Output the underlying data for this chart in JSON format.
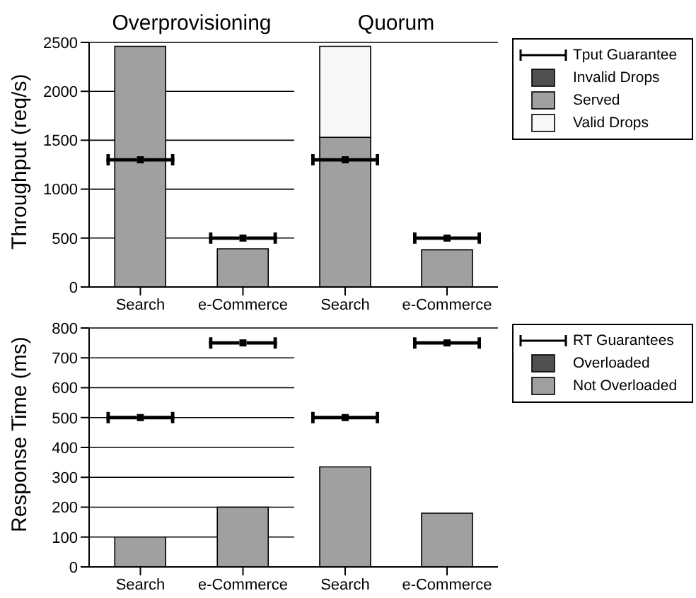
{
  "chart_data": [
    {
      "type": "bar",
      "title": "Overprovisioning",
      "ylabel": "Throughput (req/s)",
      "stacked": true,
      "categories": [
        "Search",
        "e-Commerce"
      ],
      "ylim": [
        0,
        2500
      ],
      "yticks": [
        0,
        500,
        1000,
        1500,
        2000,
        2500
      ],
      "grid": "y",
      "legend": false,
      "series": [
        {
          "color": "#a0a0a0",
          "values": [
            2460,
            390
          ]
        },
        {
          "type": "scatter",
          "color": "#000000",
          "values": [
            1300,
            500
          ]
        }
      ]
    },
    {
      "type": "bar",
      "title": "Quorum",
      "stacked": true,
      "categories": [
        "Search",
        "e-Commerce"
      ],
      "ylim": [
        0,
        2500
      ],
      "yticks": [
        0,
        500,
        1000,
        1500,
        2000,
        2500
      ],
      "grid": "y",
      "tick_labels": "x",
      "legend": "right",
      "series": [
        {
          "name": "Tput Guarantee",
          "type": "scatter",
          "color": "#000000",
          "values": [
            1300,
            500
          ]
        },
        {
          "name": "Invalid Drops",
          "color": "#505050",
          "values": [
            0,
            0
          ]
        },
        {
          "name": "Served",
          "color": "#a0a0a0",
          "values": [
            1530,
            380
          ]
        },
        {
          "name": "Valid Drops",
          "color": "#f8f8f8",
          "values": [
            930,
            0
          ]
        }
      ]
    },
    {
      "type": "bar",
      "ylabel": "Response Time (ms)",
      "stacked": true,
      "categories": [
        "Search",
        "e-Commerce"
      ],
      "ylim": [
        0,
        800
      ],
      "yticks": [
        0,
        100,
        200,
        300,
        400,
        500,
        600,
        700,
        800
      ],
      "grid": "y",
      "legend": false,
      "series": [
        {
          "color": "#a0a0a0",
          "values": [
            100,
            200
          ]
        },
        {
          "type": "scatter",
          "color": "#000000",
          "values": [
            500,
            750
          ]
        }
      ]
    },
    {
      "type": "bar",
      "stacked": true,
      "categories": [
        "Search",
        "e-Commerce"
      ],
      "ylim": [
        0,
        800
      ],
      "yticks": [
        0,
        100,
        200,
        300,
        400,
        500,
        600,
        700,
        800
      ],
      "grid": "y",
      "tick_labels": "x",
      "legend": "right",
      "series": [
        {
          "name": "RT Guarantees",
          "type": "scatter",
          "color": "#000000",
          "values": [
            500,
            750
          ]
        },
        {
          "name": "Overloaded",
          "color": "#505050",
          "values": [
            0,
            0
          ]
        },
        {
          "name": "Not Overloaded",
          "color": "#a0a0a0",
          "values": [
            335,
            180
          ]
        }
      ]
    }
  ]
}
